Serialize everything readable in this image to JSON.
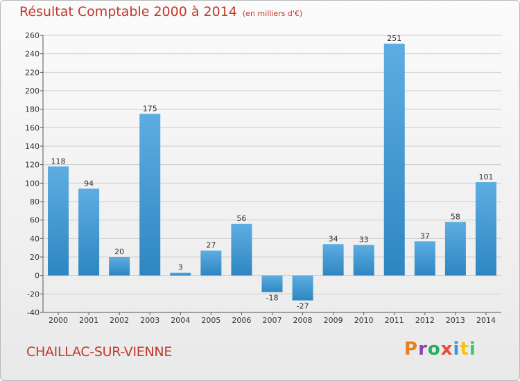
{
  "header": {
    "title": "Résultat Comptable 2000 à 2014",
    "unit": "(en milliers d'€)"
  },
  "footer": {
    "city": "CHAILLAC-SUR-VIENNE",
    "brand": "Proxiti"
  },
  "colors": {
    "title": "#c0392b",
    "bar_light": "#5dade2",
    "bar_dark": "#2e86c1",
    "grid": "#cccccc",
    "brand_letters": [
      "#e67e22",
      "#8e44ad",
      "#27ae60",
      "#e74c3c",
      "#3498db",
      "#f1c40f",
      "#2ecc71"
    ]
  },
  "chart_data": {
    "type": "bar",
    "title": "Résultat Comptable 2000 à 2014",
    "subtitle": "(en milliers d'€)",
    "xlabel": "",
    "ylabel": "",
    "categories": [
      "2000",
      "2001",
      "2002",
      "2003",
      "2004",
      "2005",
      "2006",
      "2007",
      "2008",
      "2009",
      "2010",
      "2011",
      "2012",
      "2013",
      "2014"
    ],
    "values": [
      118,
      94,
      20,
      175,
      3,
      27,
      56,
      -18,
      -27,
      34,
      33,
      251,
      37,
      58,
      101
    ],
    "ylim": [
      -40,
      260
    ],
    "yticks": [
      -40,
      -20,
      0,
      20,
      40,
      60,
      80,
      100,
      120,
      140,
      160,
      180,
      200,
      220,
      240,
      260
    ],
    "grid": true,
    "legend": "none"
  }
}
